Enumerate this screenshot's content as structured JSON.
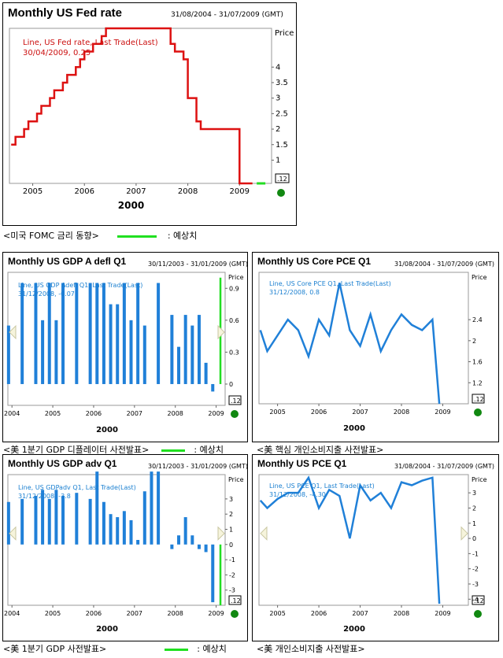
{
  "colors": {
    "fed_line": "#dd1111",
    "bar": "#2080d8",
    "forecast": "#22dd22",
    "marker": "#118811",
    "annot_red": "#cc1111",
    "annot_blue": "#1a7fd0"
  },
  "captions": {
    "c1": "<미국 FOMC 금리 동향>",
    "c1_legend": ": 예상치",
    "c2": "<美 1분기 GDP 디플레이터 사전발표>",
    "c2_legend": ": 예상치",
    "c3": "<美 핵심 개인소비지출 사전발표>",
    "c4": "<美 1분기 GDP 사전발표>",
    "c4_legend": ": 예상치",
    "c5": "<美 개인소비지출 사전발표>"
  },
  "panels": {
    "fed": {
      "title": "Monthly US Fed rate",
      "date": "31/08/2004 - 31/07/2009 (GMT)",
      "price_label": "Price",
      "last_badge": ".12",
      "annot1": "Line, US Fed rate, Last Trade(Last)",
      "annot2": "30/04/2009, 0.25",
      "year_label": "2000"
    },
    "gdpdefl": {
      "title": "Monthly US GDP A defl Q1",
      "date": "30/11/2003 - 31/01/2009 (GMT)",
      "price_label": "Price",
      "last_badge": ".12",
      "annot1": "Line, US GDP Adefl Q1, Last Trade(Last)",
      "annot2": "31/12/2008, -0.07",
      "year_label": "2000"
    },
    "corepce": {
      "title": "Monthly US Core PCE Q1",
      "date": "31/08/2004 - 31/07/2009 (GMT)",
      "price_label": "Price",
      "last_badge": ".12",
      "annot1": "Line, US Core PCE Q1, Last Trade(Last)",
      "annot2": "31/12/2008, 0.8",
      "year_label": "2000"
    },
    "gdpadv": {
      "title": "Monthly US GDP adv Q1",
      "date": "30/11/2003 - 31/01/2009 (GMT)",
      "price_label": "Price",
      "last_badge": ".12",
      "annot1": "Line, US GDPadv Q1, Last Trade(Last)",
      "annot2": "31/12/2008, -3.8",
      "year_label": "2000"
    },
    "pce": {
      "title": "Monthly US PCE Q1",
      "date": "31/08/2004 - 31/07/2009 (GMT)",
      "price_label": "Price",
      "last_badge": ".12",
      "annot1": "Line, US PCE Q1, Last Trade(Last)",
      "annot2": "31/12/2008, -4.30",
      "year_label": "2000"
    }
  },
  "chart_data": [
    {
      "id": "fed",
      "type": "line",
      "title": "Monthly US Fed rate",
      "x_ticks": [
        "2005",
        "2006",
        "2007",
        "2008",
        "2009"
      ],
      "y_ticks": [
        "1",
        "1.5",
        "2",
        "2.5",
        "3",
        "3.5",
        "4"
      ],
      "xlim": [
        "2004-08",
        "2009-07"
      ],
      "ylim": [
        0.25,
        5.25
      ],
      "series": [
        {
          "name": "Line, US Fed rate, Last Trade(Last)",
          "x": [
            "2004-08",
            "2004-09",
            "2004-11",
            "2004-12",
            "2005-02",
            "2005-03",
            "2005-05",
            "2005-06",
            "2005-08",
            "2005-09",
            "2005-11",
            "2005-12",
            "2006-01",
            "2006-03",
            "2006-05",
            "2006-06",
            "2007-08",
            "2007-09",
            "2007-10",
            "2007-12",
            "2008-01",
            "2008-01",
            "2008-03",
            "2008-04",
            "2009-01",
            "2009-04"
          ],
          "values": [
            1.5,
            1.75,
            2.0,
            2.25,
            2.5,
            2.75,
            3.0,
            3.25,
            3.5,
            3.75,
            4.0,
            4.25,
            4.5,
            4.75,
            5.0,
            5.25,
            5.25,
            4.75,
            4.5,
            4.25,
            3.5,
            3.0,
            2.25,
            2.0,
            0.25,
            0.25
          ]
        }
      ],
      "forecast": {
        "x": [
          "2009-05",
          "2009-07"
        ],
        "values": [
          0.25,
          0.25
        ]
      },
      "last_value": ".12"
    },
    {
      "id": "gdpdefl",
      "type": "bar",
      "title": "Monthly US GDP A defl Q1",
      "x_ticks": [
        "2004",
        "2005",
        "2006",
        "2007",
        "2008",
        "2009"
      ],
      "y_ticks": [
        "0",
        "0.3",
        "0.6",
        "0.9"
      ],
      "ylim": [
        -0.2,
        1.05
      ],
      "categories": [
        "2003-12",
        "2004-02",
        "2004-04",
        "2004-06",
        "2004-08",
        "2004-10",
        "2004-12",
        "2005-02",
        "2005-04",
        "2005-06",
        "2005-08",
        "2005-10",
        "2005-12",
        "2006-02",
        "2006-04",
        "2006-06",
        "2006-08",
        "2006-10",
        "2006-12",
        "2007-02",
        "2007-04",
        "2007-06",
        "2007-08",
        "2007-10",
        "2007-12",
        "2008-02",
        "2008-04",
        "2008-06",
        "2008-08",
        "2008-10",
        "2008-12"
      ],
      "values": [
        0.55,
        0.0,
        0.95,
        0.0,
        0.95,
        0.6,
        0.95,
        0.6,
        0.95,
        0.0,
        0.95,
        0.0,
        0.95,
        0.95,
        0.95,
        0.75,
        0.75,
        0.95,
        0.6,
        0.95,
        0.55,
        0.0,
        0.95,
        0.0,
        0.65,
        0.35,
        0.65,
        0.55,
        0.65,
        0.2,
        -0.07
      ],
      "forecast_value": 1.0,
      "last_value": ".12"
    },
    {
      "id": "corepce",
      "type": "line",
      "title": "Monthly US Core PCE Q1",
      "x_ticks": [
        "2005",
        "2006",
        "2007",
        "2008",
        "2009"
      ],
      "y_ticks": [
        "1.2",
        "1.6",
        "2",
        "2.4"
      ],
      "ylim": [
        0.8,
        3.3
      ],
      "series": [
        {
          "name": "Line, US Core PCE Q1, Last Trade(Last)",
          "x": [
            "2004-08",
            "2004-10",
            "2005-04",
            "2005-07",
            "2005-10",
            "2006-01",
            "2006-04",
            "2006-07",
            "2006-10",
            "2007-01",
            "2007-04",
            "2007-07",
            "2007-10",
            "2008-01",
            "2008-04",
            "2008-07",
            "2008-10",
            "2008-12"
          ],
          "values": [
            2.2,
            1.8,
            2.4,
            2.2,
            1.7,
            2.4,
            2.1,
            3.1,
            2.2,
            1.9,
            2.5,
            1.8,
            2.2,
            2.5,
            2.3,
            2.2,
            2.4,
            0.8
          ]
        }
      ],
      "last_value": ".12"
    },
    {
      "id": "gdpadv",
      "type": "bar",
      "title": "Monthly US GDP adv Q1",
      "x_ticks": [
        "2004",
        "2005",
        "2006",
        "2007",
        "2008",
        "2009"
      ],
      "y_ticks": [
        "-3",
        "-2",
        "-1",
        "0",
        "1",
        "2",
        "3"
      ],
      "ylim": [
        -4,
        4.6
      ],
      "categories": [
        "2003-12",
        "2004-02",
        "2004-04",
        "2004-06",
        "2004-08",
        "2004-10",
        "2004-12",
        "2005-02",
        "2005-04",
        "2005-06",
        "2005-08",
        "2005-10",
        "2005-12",
        "2006-02",
        "2006-04",
        "2006-06",
        "2006-08",
        "2006-10",
        "2006-12",
        "2007-02",
        "2007-04",
        "2007-06",
        "2007-08",
        "2007-10",
        "2007-12",
        "2008-02",
        "2008-04",
        "2008-06",
        "2008-08",
        "2008-10",
        "2008-12"
      ],
      "values": [
        2.8,
        0.0,
        3.0,
        0.0,
        3.2,
        3.6,
        3.0,
        3.6,
        3.2,
        0.0,
        3.4,
        0.0,
        3.0,
        4.8,
        2.8,
        2.0,
        1.8,
        2.2,
        1.6,
        0.3,
        3.5,
        4.8,
        4.8,
        0.0,
        -0.3,
        0.6,
        1.8,
        0.6,
        -0.3,
        -0.5,
        -3.8
      ],
      "forecast_value": -4.0,
      "last_value": ".12"
    },
    {
      "id": "pce",
      "type": "line",
      "title": "Monthly US PCE Q1",
      "x_ticks": [
        "2005",
        "2006",
        "2007",
        "2008",
        "2009"
      ],
      "y_ticks": [
        "-4",
        "-3",
        "-2",
        "-1",
        "0",
        "1",
        "2",
        "3"
      ],
      "ylim": [
        -4.4,
        4.2
      ],
      "series": [
        {
          "name": "Line, US PCE Q1, Last Trade(Last)",
          "x": [
            "2004-08",
            "2004-10",
            "2005-01",
            "2005-04",
            "2005-07",
            "2005-10",
            "2006-01",
            "2006-04",
            "2006-07",
            "2006-10",
            "2007-01",
            "2007-04",
            "2007-07",
            "2007-10",
            "2008-01",
            "2008-04",
            "2008-07",
            "2008-10",
            "2008-12"
          ],
          "values": [
            2.5,
            2.0,
            2.6,
            3.0,
            3.0,
            4.0,
            2.0,
            3.2,
            2.8,
            0.0,
            3.5,
            2.5,
            3.0,
            2.0,
            3.7,
            3.5,
            3.8,
            4.0,
            -4.3
          ]
        }
      ],
      "last_value": ".12"
    }
  ]
}
